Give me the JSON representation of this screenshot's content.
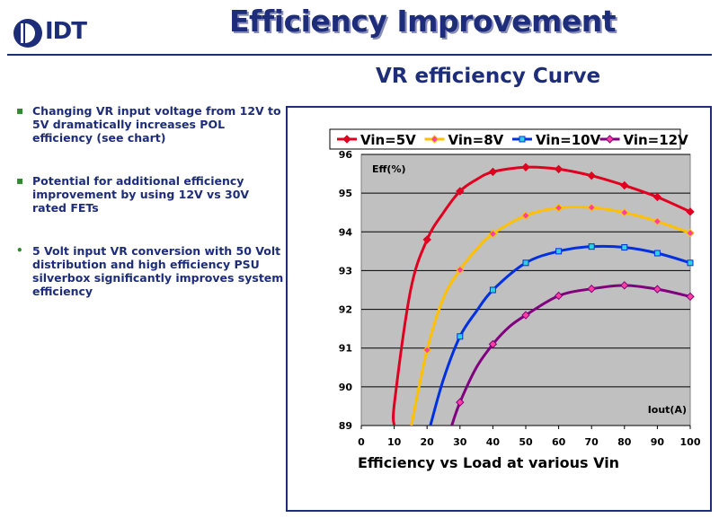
{
  "brand": {
    "logo_text": "IDT",
    "color": "#1e2d7a"
  },
  "slide": {
    "title": "Efficiency Improvement",
    "subtitle": "VR efficiency Curve"
  },
  "bullets": [
    "Changing VR input voltage from 12V to 5V  dramatically increases POL efficiency (see chart)",
    "Potential for additional efficiency improvement by using 12V vs 30V rated FETs",
    "5 Volt input VR conversion with 50 Volt distribution and high efficiency PSU silverbox significantly improves system efficiency"
  ],
  "bullet_marks": [
    "▪",
    "▪",
    "•"
  ],
  "chart_data": {
    "type": "line",
    "caption": "Efficiency vs Load at various Vin",
    "ylabel": "Eff(%)",
    "xlabel": "Iout(A)",
    "xlim": [
      0,
      100
    ],
    "ylim": [
      89,
      96
    ],
    "x_ticks": [
      "0",
      "10",
      "20",
      "30",
      "40",
      "50",
      "60",
      "70",
      "80",
      "90",
      "100"
    ],
    "y_ticks": [
      "89",
      "90",
      "91",
      "92",
      "93",
      "94",
      "95",
      "96"
    ],
    "grid": true,
    "legend_position": "top",
    "series": [
      {
        "name": "Vin=5V",
        "color": "#e00020",
        "marker": "diamond",
        "marker_color": "#e00020",
        "points": [
          [
            10,
            89.0
          ],
          [
            10.1,
            89.6
          ],
          [
            15,
            92.5
          ],
          [
            20,
            93.8
          ],
          [
            25,
            94.5
          ],
          [
            30,
            95.05
          ],
          [
            35,
            95.35
          ],
          [
            40,
            95.55
          ],
          [
            50,
            95.67
          ],
          [
            60,
            95.62
          ],
          [
            70,
            95.45
          ],
          [
            80,
            95.2
          ],
          [
            90,
            94.9
          ],
          [
            100,
            94.52
          ]
        ]
      },
      {
        "name": "Vin=8V",
        "color": "#ffc000",
        "marker": "diamond",
        "marker_color": "#ff40a0",
        "points": [
          [
            15.2,
            89.0
          ],
          [
            20,
            90.95
          ],
          [
            25,
            92.3
          ],
          [
            30,
            93.02
          ],
          [
            35,
            93.55
          ],
          [
            40,
            93.95
          ],
          [
            50,
            94.42
          ],
          [
            60,
            94.62
          ],
          [
            70,
            94.63
          ],
          [
            80,
            94.5
          ],
          [
            90,
            94.27
          ],
          [
            100,
            93.97
          ]
        ]
      },
      {
        "name": "Vin=10V",
        "color": "#0030e0",
        "marker": "square",
        "marker_color": "#30d0e0",
        "points": [
          [
            21,
            89.0
          ],
          [
            25,
            90.2
          ],
          [
            30,
            91.3
          ],
          [
            35,
            91.95
          ],
          [
            40,
            92.5
          ],
          [
            50,
            93.2
          ],
          [
            60,
            93.5
          ],
          [
            70,
            93.62
          ],
          [
            80,
            93.6
          ],
          [
            90,
            93.45
          ],
          [
            100,
            93.2
          ]
        ]
      },
      {
        "name": "Vin=12V",
        "color": "#800080",
        "marker": "diamond",
        "marker_color": "#ff40a0",
        "points": [
          [
            27.5,
            89.0
          ],
          [
            30,
            89.6
          ],
          [
            35,
            90.5
          ],
          [
            40,
            91.1
          ],
          [
            45,
            91.55
          ],
          [
            50,
            91.85
          ],
          [
            60,
            92.35
          ],
          [
            70,
            92.53
          ],
          [
            80,
            92.62
          ],
          [
            90,
            92.52
          ],
          [
            100,
            92.33
          ]
        ]
      }
    ]
  }
}
